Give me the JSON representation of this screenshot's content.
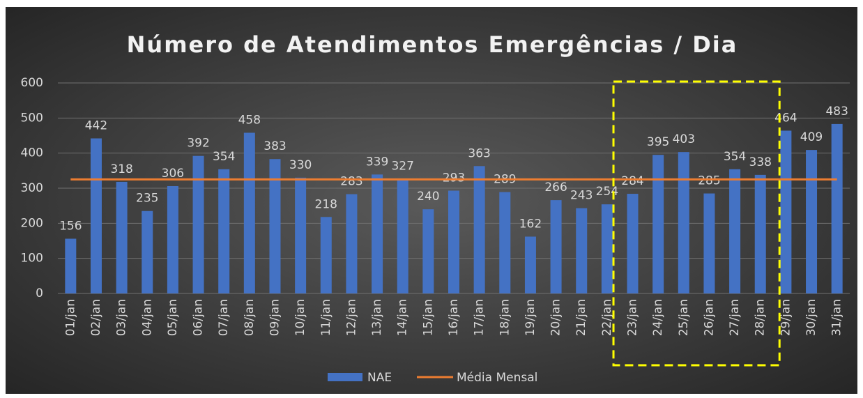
{
  "chart_data": {
    "type": "bar",
    "title": "Número de Atendimentos Emergências / Dia",
    "categories": [
      "01/jan",
      "02/jan",
      "03/jan",
      "04/jan",
      "05/jan",
      "06/jan",
      "07/jan",
      "08/jan",
      "09/jan",
      "10/jan",
      "11/jan",
      "12/jan",
      "13/jan",
      "14/jan",
      "15/jan",
      "16/jan",
      "17/jan",
      "18/jan",
      "19/jan",
      "20/jan",
      "21/jan",
      "22/jan",
      "23/jan",
      "24/jan",
      "25/jan",
      "26/jan",
      "27/jan",
      "28/jan",
      "29/jan",
      "30/jan",
      "31/jan"
    ],
    "series": [
      {
        "name": "NAE",
        "type": "bar",
        "color": "#4472c4",
        "values": [
          156,
          442,
          318,
          235,
          306,
          392,
          354,
          458,
          383,
          330,
          218,
          283,
          339,
          327,
          240,
          293,
          363,
          289,
          162,
          266,
          243,
          254,
          284,
          395,
          403,
          285,
          354,
          338,
          464,
          409,
          483
        ]
      },
      {
        "name": "Média Mensal",
        "type": "line",
        "color": "#ed7d31",
        "values": [
          325,
          325,
          325,
          325,
          325,
          325,
          325,
          325,
          325,
          325,
          325,
          325,
          325,
          325,
          325,
          325,
          325,
          325,
          325,
          325,
          325,
          325,
          325,
          325,
          325,
          325,
          325,
          325,
          325,
          325,
          325
        ]
      }
    ],
    "ylim": [
      0,
      600
    ],
    "yticks": [
      0,
      100,
      200,
      300,
      400,
      500,
      600
    ],
    "grid": true,
    "legend": "bottom"
  }
}
